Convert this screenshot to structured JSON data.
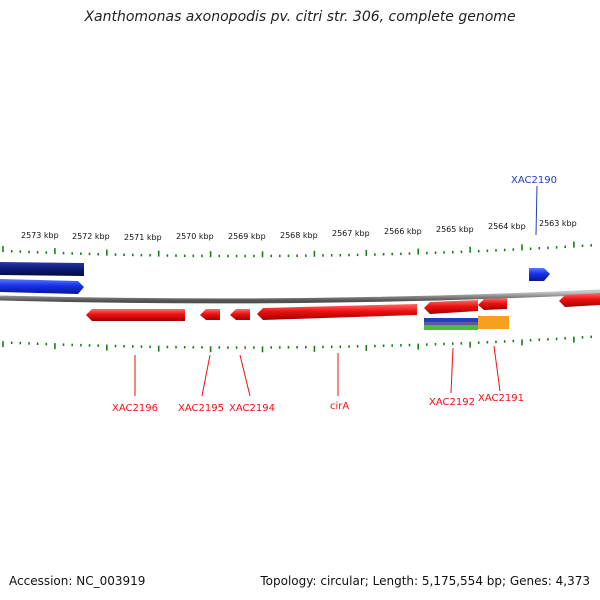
{
  "title": "Xanthomonas axonopodis pv. citri str. 306, complete genome",
  "footer": {
    "accession": "Accession: NC_003919",
    "summary": "Topology: circular; Length: 5,175,554 bp; Genes: 4,373"
  },
  "colors": {
    "backbone": "#8a8a8a",
    "ticks": "#1d7a1d",
    "forward_gene": "#1530e8",
    "forward_gene_dark": "#0d1a78",
    "reverse_gene": "#ee1111",
    "annotation_blue": "#1f3fbf",
    "annotation_purple": "#5a5aa0",
    "annotation_green": "#4cbb40",
    "annotation_orange": "#f5a020"
  },
  "scale_labels": [
    "2573 kbp",
    "2572 kbp",
    "2571 kbp",
    "2570 kbp",
    "2569 kbp",
    "2568 kbp",
    "2567 kbp",
    "2566 kbp",
    "2565 kbp",
    "2564 kbp",
    "2563 kbp"
  ],
  "gene_labels": {
    "xac2190": "XAC2190",
    "xac2196": "XAC2196",
    "xac2195": "XAC2195",
    "xac2194": "XAC2194",
    "cira": "cirA",
    "xac2192": "XAC2192",
    "xac2191": "XAC2191"
  }
}
